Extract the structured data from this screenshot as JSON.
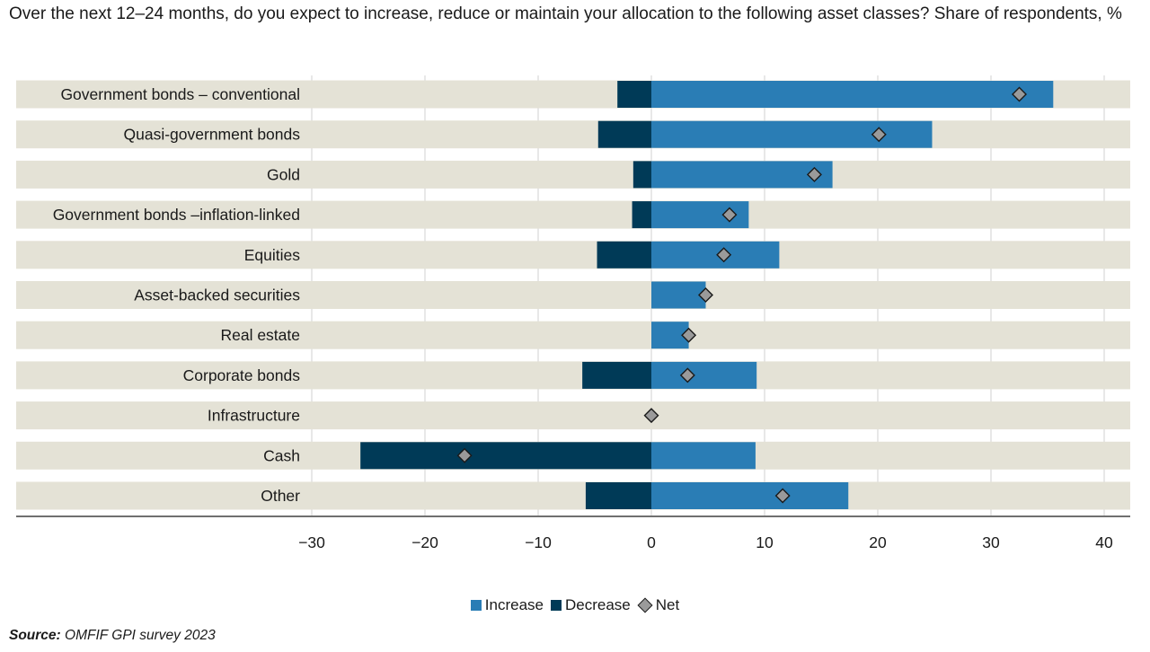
{
  "title": "Over the next 12–24 months, do you expect to increase, reduce or maintain your allocation to the following asset classes? Share of respondents, %",
  "source_label": "Source:",
  "source_text": " OMFIF GPI survey 2023",
  "colors": {
    "increase": "#2a7db5",
    "decrease": "#003a57",
    "net": "#9a9a9a",
    "band": "#e4e2d6"
  },
  "chart_data": {
    "type": "bar",
    "orientation": "horizontal",
    "categories": [
      "Government bonds – conventional",
      "Quasi-government bonds",
      "Gold",
      "Government bonds –inflation-linked",
      "Equities",
      "Asset-backed securities",
      "Real estate",
      "Corporate bonds",
      "Infrastructure",
      "Cash",
      "Other"
    ],
    "series": [
      {
        "name": "Increase",
        "values": [
          35.5,
          24.8,
          16.0,
          8.6,
          11.3,
          4.8,
          3.3,
          9.3,
          0,
          9.2,
          17.4
        ]
      },
      {
        "name": "Decrease",
        "values": [
          -3.0,
          -4.7,
          -1.6,
          -1.7,
          -4.8,
          0,
          0,
          -6.1,
          0,
          -25.7,
          -5.8
        ]
      },
      {
        "name": "Net",
        "type": "marker",
        "values": [
          32.5,
          20.1,
          14.4,
          6.9,
          6.4,
          4.8,
          3.3,
          3.2,
          0,
          -16.5,
          11.6
        ]
      }
    ],
    "xlim": [
      -30,
      40
    ],
    "xticks": [
      -30,
      -20,
      -10,
      0,
      10,
      20,
      30,
      40
    ],
    "xlabel": "",
    "ylabel": "",
    "legend": {
      "position": "bottom",
      "entries": [
        "Increase",
        "Decrease",
        "Net"
      ]
    }
  }
}
